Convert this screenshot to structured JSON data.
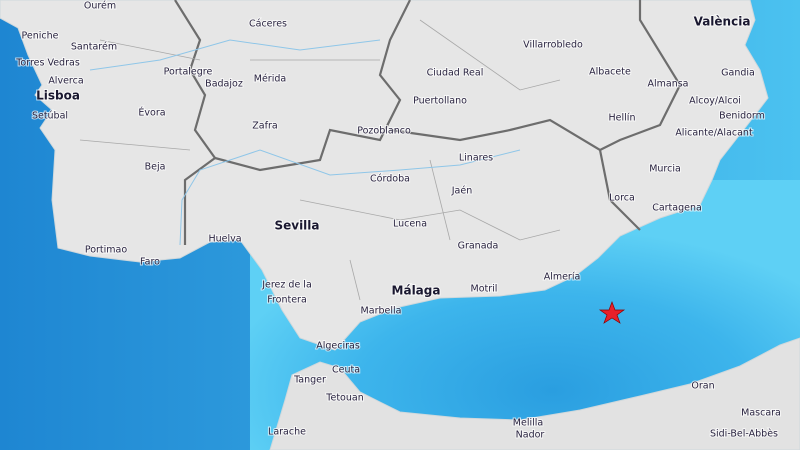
{
  "map": {
    "places": [
      "Ourém",
      "Cáceres",
      "València",
      "Peniche",
      "Santarém",
      "Portalegre",
      "Villarrobledo",
      "Torres Vedras",
      "Mérida",
      "Ciudad Real",
      "Albacete",
      "Gandia",
      "Alverca",
      "Badajoz",
      "Almansa",
      "Lisboa",
      "Puertollano",
      "Alcoy/Alcoi",
      "Setúbal",
      "Évora",
      "Pozoblanco",
      "Hellín",
      "Benidorm",
      "Zafra",
      "Alicante/Alacant",
      "Linares",
      "Beja",
      "Murcia",
      "Córdoba",
      "Jaén",
      "Lorca",
      "Cartagena",
      "Sevilla",
      "Lucena",
      "Portimao",
      "Huelva",
      "Granada",
      "Faro",
      "Almería",
      "Jerez de la",
      "Frontera",
      "Málaga",
      "Motril",
      "Marbella",
      "Algeciras",
      "Ceuta",
      "Tanger",
      "Oran",
      "Tetouan",
      "Melilla",
      "Nador",
      "Mascara",
      "Larache",
      "Sidi-Bel-Abbès"
    ]
  }
}
